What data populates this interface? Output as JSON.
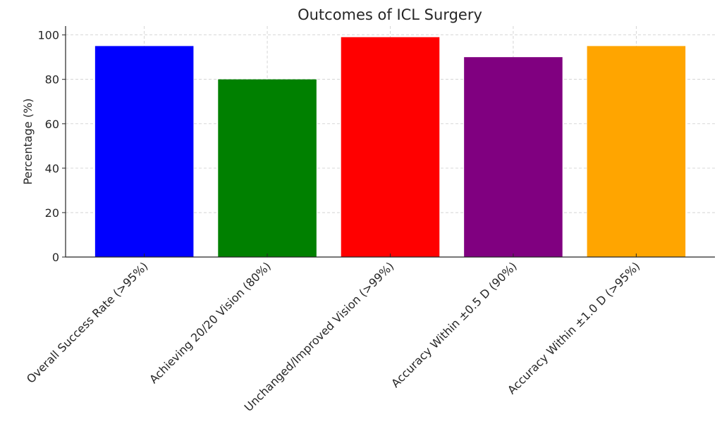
{
  "chart_data": {
    "type": "bar",
    "title": "Outcomes of ICL Surgery",
    "xlabel": "",
    "ylabel": "Percentage (%)",
    "categories": [
      "Overall Success Rate (>95%)",
      "Achieving 20/20 Vision (80%)",
      "Unchanged/Improved Vision (>99%)",
      "Accuracy Within ±0.5 D (90%)",
      "Accuracy Within ±1.0 D (>95%)"
    ],
    "values": [
      95,
      80,
      99,
      90,
      95
    ],
    "colors": [
      "#0000ff",
      "#008000",
      "#ff0000",
      "#800080",
      "#ffa500"
    ],
    "ylim": [
      0,
      104
    ],
    "yticks": [
      0,
      20,
      40,
      60,
      80,
      100
    ],
    "grid": true
  }
}
